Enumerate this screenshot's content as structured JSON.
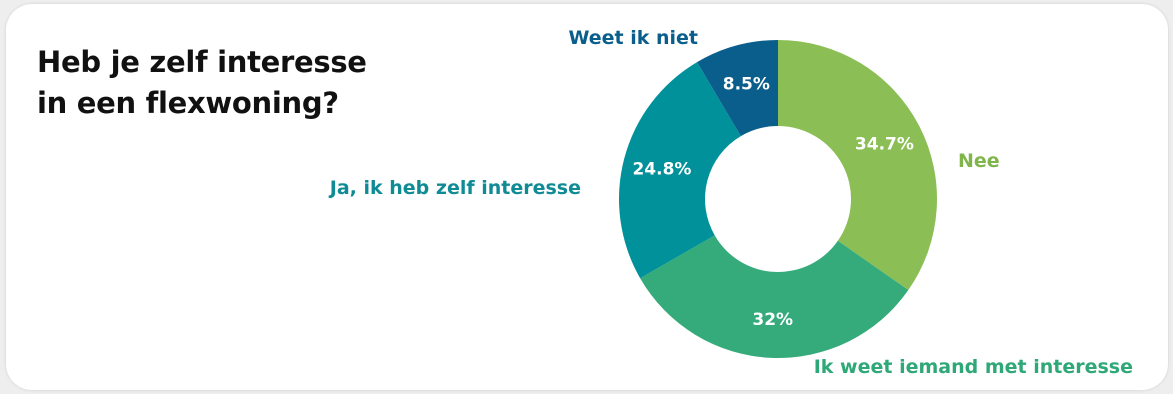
{
  "chart_data": {
    "type": "pie",
    "variant": "donut",
    "title": "Heb je zelf interesse in een flexwoning?",
    "title_lines": [
      "Heb je zelf interesse",
      "in een flexwoning?"
    ],
    "slices": [
      {
        "label": "Nee",
        "value": 34.7,
        "value_label": "34.7%",
        "color": "#8bbf56"
      },
      {
        "label": "Ik weet iemand met interesse",
        "value": 32,
        "value_label": "32%",
        "color": "#35ab7c"
      },
      {
        "label": "Ja, ik heb zelf interesse",
        "value": 24.8,
        "value_label": "24.8%",
        "color": "#00919a"
      },
      {
        "label": "Weet ik niet",
        "value": 8.5,
        "value_label": "8.5%",
        "color": "#0a5e8c"
      }
    ],
    "start_angle": "top",
    "direction": "clockwise",
    "legend": "none",
    "label_colors": {
      "Nee": "#7fb54b",
      "Ik weet iemand met interesse": "#2fa878",
      "Ja, ik heb zelf interesse": "#0f8b95",
      "Weet ik niet": "#0a5e8c"
    }
  }
}
